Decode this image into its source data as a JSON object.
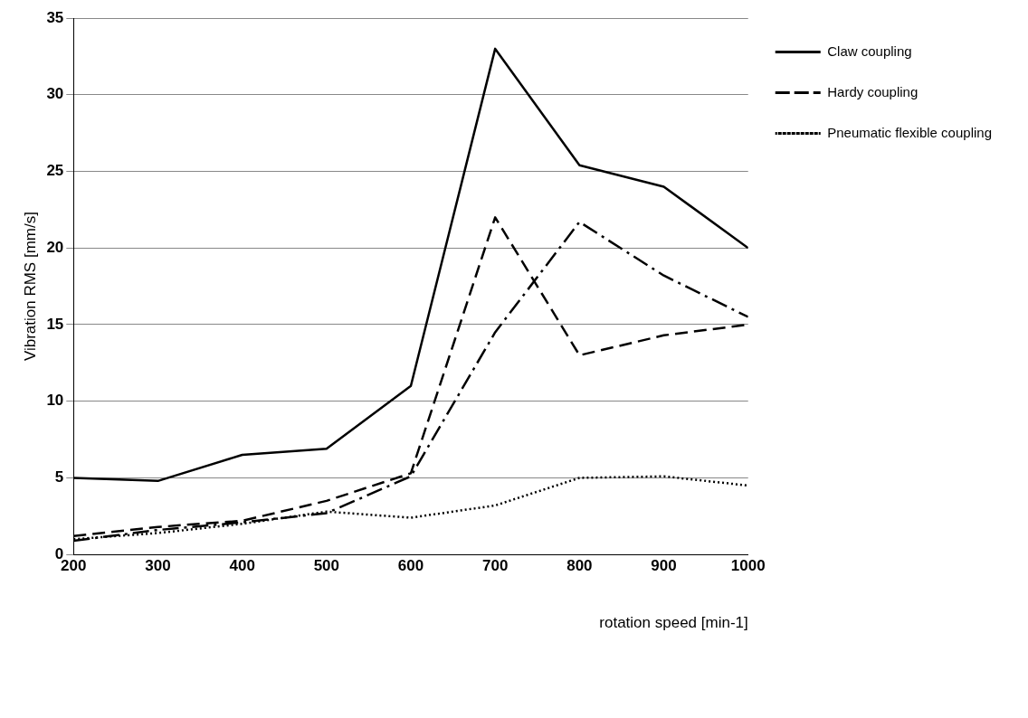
{
  "chart_data": {
    "type": "line",
    "xlabel": "rotation speed [min-1]",
    "ylabel": "Vibration RMS [mm/s]",
    "x": [
      200,
      300,
      400,
      500,
      600,
      700,
      800,
      900,
      1000
    ],
    "xlim": [
      200,
      1000
    ],
    "xticks": [
      200,
      300,
      400,
      500,
      600,
      700,
      800,
      900,
      1000
    ],
    "ylim": [
      0,
      35
    ],
    "yticks": [
      0,
      5,
      10,
      15,
      20,
      25,
      30,
      35
    ],
    "grid": "y",
    "legend": "top right",
    "marker": "none",
    "series": [
      {
        "name": "Claw coupling",
        "color": "#000000",
        "line_style": "solid",
        "values": [
          5,
          4.8,
          6.5,
          6.9,
          11,
          33,
          25.4,
          24,
          20
        ]
      },
      {
        "name": "Hardy coupling",
        "color": "#000000",
        "line_style": "dashed",
        "values": [
          1.2,
          1.8,
          2.2,
          3.5,
          5.3,
          22,
          13,
          14.3,
          15
        ]
      },
      {
        "color": "#000000",
        "line_style": "dashdot",
        "values": [
          0.9,
          1.6,
          2.1,
          2.7,
          5.1,
          14.5,
          21.7,
          18.2,
          15.5
        ]
      },
      {
        "name": "Pneumatic flexible coupling",
        "color": "#000000",
        "line_style": "dotted",
        "values": [
          1,
          1.4,
          2,
          2.8,
          2.4,
          3.2,
          5,
          5.1,
          4.5
        ]
      }
    ]
  }
}
